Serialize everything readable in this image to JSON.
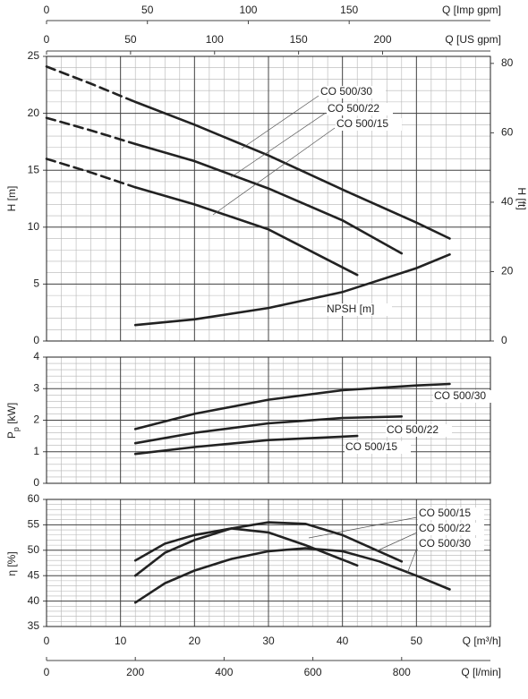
{
  "chart_data": [
    {
      "type": "line",
      "y_label": "H [m]",
      "ylim": [
        0,
        25
      ],
      "yticks": [
        0,
        5,
        10,
        15,
        20,
        25
      ],
      "y2_label": "H [ft]",
      "y2lim": [
        0,
        82.02
      ],
      "y2ticks": [
        0,
        20,
        40,
        60,
        80
      ],
      "grid": true,
      "secondary_x_axes": [
        {
          "label": "Q [Imp gpm]",
          "xlim": [
            0,
            220
          ],
          "xticks": [
            0,
            50,
            100,
            150
          ]
        },
        {
          "label": "Q [US gpm]",
          "xlim": [
            0,
            264.17
          ],
          "xticks": [
            0,
            50,
            100,
            150,
            200
          ]
        }
      ],
      "series": [
        {
          "name": "CO 500/30",
          "color": "#222222",
          "segments": [
            {
              "style": "dashed",
              "x": [
                0,
                6,
                12
              ],
              "values": [
                24.1,
                22.6,
                21.0
              ]
            },
            {
              "style": "solid",
              "x": [
                12,
                20,
                30,
                40,
                50,
                54.5
              ],
              "values": [
                21.0,
                19.0,
                16.3,
                13.3,
                10.4,
                9.0
              ]
            }
          ]
        },
        {
          "name": "CO 500/22",
          "color": "#222222",
          "segments": [
            {
              "style": "dashed",
              "x": [
                0,
                6,
                12
              ],
              "values": [
                19.6,
                18.5,
                17.3
              ]
            },
            {
              "style": "solid",
              "x": [
                12,
                20,
                30,
                40,
                48
              ],
              "values": [
                17.3,
                15.8,
                13.4,
                10.6,
                7.7
              ]
            }
          ]
        },
        {
          "name": "CO 500/15",
          "color": "#222222",
          "segments": [
            {
              "style": "dashed",
              "x": [
                0,
                6,
                12
              ],
              "values": [
                16.0,
                14.8,
                13.5
              ]
            },
            {
              "style": "solid",
              "x": [
                12,
                20,
                30,
                42
              ],
              "values": [
                13.5,
                12.0,
                9.8,
                5.8
              ]
            }
          ]
        },
        {
          "name": "NPSH [m]",
          "color": "#222222",
          "segments": [
            {
              "style": "solid",
              "x": [
                12,
                20,
                30,
                40,
                50,
                54.5
              ],
              "values": [
                1.4,
                1.9,
                2.9,
                4.3,
                6.4,
                7.6
              ]
            }
          ]
        }
      ]
    },
    {
      "type": "line",
      "y_label": [
        "P",
        "p",
        " [kW]"
      ],
      "ylim": [
        0,
        4
      ],
      "yticks": [
        0,
        1,
        2,
        3,
        4
      ],
      "grid": true,
      "series": [
        {
          "name": "CO 500/30",
          "color": "#222222",
          "segments": [
            {
              "style": "solid",
              "x": [
                12,
                20,
                30,
                40,
                50,
                54.5
              ],
              "values": [
                1.72,
                2.2,
                2.65,
                2.95,
                3.1,
                3.15
              ]
            }
          ]
        },
        {
          "name": "CO 500/22",
          "color": "#222222",
          "segments": [
            {
              "style": "solid",
              "x": [
                12,
                20,
                30,
                40,
                48
              ],
              "values": [
                1.27,
                1.6,
                1.9,
                2.07,
                2.12
              ]
            }
          ]
        },
        {
          "name": "CO 500/15",
          "color": "#222222",
          "segments": [
            {
              "style": "solid",
              "x": [
                12,
                20,
                30,
                42
              ],
              "values": [
                0.93,
                1.15,
                1.37,
                1.5
              ]
            }
          ]
        }
      ]
    },
    {
      "type": "line",
      "y_label": "η [%]",
      "ylim": [
        35,
        60
      ],
      "yticks": [
        35,
        40,
        45,
        50,
        55,
        60
      ],
      "grid": true,
      "xlabel": "Q [m³/h]",
      "xlim": [
        0,
        60
      ],
      "xticks": [
        0,
        10,
        20,
        30,
        40,
        50
      ],
      "secondary_x_axes": [
        {
          "label": "Q [l/min]",
          "xlim": [
            0,
            1000
          ],
          "xticks": [
            0,
            200,
            400,
            600,
            800
          ]
        }
      ],
      "series": [
        {
          "name": "CO 500/15",
          "color": "#222222",
          "segments": [
            {
              "style": "solid",
              "x": [
                12,
                16,
                20,
                25,
                30,
                35,
                42
              ],
              "values": [
                48,
                51.3,
                53,
                54.3,
                53.5,
                51,
                47
              ]
            }
          ]
        },
        {
          "name": "CO 500/22",
          "color": "#222222",
          "segments": [
            {
              "style": "solid",
              "x": [
                12,
                16,
                20,
                25,
                30,
                35,
                40,
                48
              ],
              "values": [
                45,
                49.5,
                52,
                54.3,
                55.5,
                55.2,
                53,
                47.8
              ]
            }
          ]
        },
        {
          "name": "CO 500/30",
          "color": "#222222",
          "segments": [
            {
              "style": "solid",
              "x": [
                12,
                16,
                20,
                25,
                30,
                35,
                40,
                45,
                50,
                54.5
              ],
              "values": [
                39.7,
                43.5,
                46,
                48.3,
                49.8,
                50.4,
                49.8,
                47.8,
                45,
                42.3
              ]
            }
          ]
        }
      ]
    }
  ]
}
